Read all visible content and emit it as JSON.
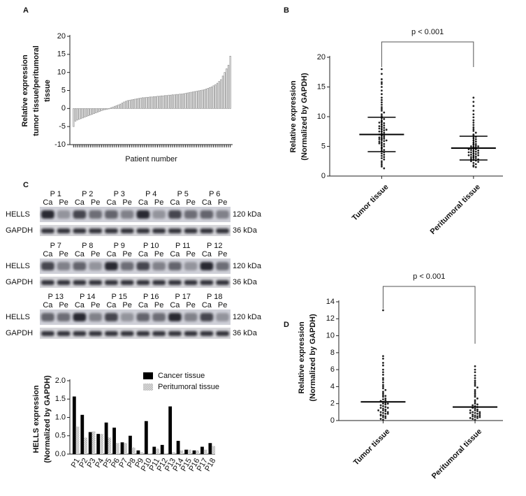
{
  "chart_data": [
    {
      "type": "bar",
      "panel": "A",
      "y_label": [
        "Relative expression",
        "tumor tissue/peritumoral",
        "tissue"
      ],
      "x_label": "Patient number",
      "categories": [
        null,
        null,
        null,
        null,
        null,
        null,
        null,
        null,
        null,
        null,
        null,
        null,
        null,
        null,
        null,
        null,
        null,
        null,
        null,
        null,
        null,
        null,
        null,
        null,
        null,
        null,
        null,
        null,
        null,
        null,
        null,
        null,
        null,
        null,
        null,
        null,
        null,
        null,
        null,
        null,
        null,
        null,
        null,
        null,
        null,
        null,
        null,
        null,
        null,
        null,
        null,
        null,
        null,
        null,
        null,
        null,
        null,
        null,
        null,
        null,
        null,
        null,
        null,
        null,
        null,
        null,
        null,
        null,
        null,
        null,
        null,
        null,
        null,
        null,
        null,
        null,
        null,
        null,
        null,
        null,
        null,
        null,
        null,
        null,
        null
      ],
      "values": [
        -5,
        -3.5,
        -3.2,
        -3,
        -2.8,
        -2.6,
        -2.4,
        -2.2,
        -2,
        -1.8,
        -1.6,
        -1.4,
        -1.2,
        -1,
        -0.8,
        -0.6,
        -0.4,
        -0.3,
        -0.2,
        -0.1,
        0.2,
        0.4,
        0.6,
        0.8,
        1,
        1.2,
        1.5,
        1.8,
        2,
        2.2,
        2.3,
        2.4,
        2.5,
        2.6,
        2.7,
        2.8,
        2.9,
        3,
        3,
        3.1,
        3.1,
        3.2,
        3.2,
        3.3,
        3.3,
        3.4,
        3.4,
        3.5,
        3.5,
        3.6,
        3.6,
        3.7,
        3.7,
        3.8,
        3.8,
        3.9,
        3.9,
        4,
        4,
        4.1,
        4.2,
        4.3,
        4.4,
        4.5,
        4.6,
        4.7,
        4.8,
        4.9,
        5,
        5.1,
        5.2,
        5.4,
        5.6,
        5.8,
        6,
        6.3,
        6.6,
        7,
        7.5,
        8,
        9,
        10,
        11,
        12,
        14.5
      ],
      "color": "#9a9a9a",
      "ylim": [
        -10,
        20
      ],
      "yticks": [
        -10,
        -5,
        0,
        5,
        10,
        15,
        20
      ]
    },
    {
      "type": "dotplot",
      "panel": "B",
      "y_label": [
        "Relative expression",
        "(Normalized by GAPDH)"
      ],
      "annotation": "p < 0.001",
      "categories": [
        "Tumor tissue",
        "Peritumoral tissue"
      ],
      "groups": [
        {
          "values": [
            18,
            17.2,
            16.3,
            15.8,
            15.5,
            15,
            14.4,
            13.8,
            13.2,
            12.8,
            12.4,
            12,
            11.6,
            11.3,
            11,
            10.7,
            10.4,
            10.1,
            9.8,
            9.6,
            9.3,
            9.1,
            8.9,
            8.7,
            8.5,
            8.3,
            8.1,
            7.9,
            7.7,
            7.5,
            7.3,
            7.1,
            6.9,
            6.8,
            6.6,
            6.4,
            6.3,
            6.1,
            5.9,
            5.8,
            5.6,
            5.4,
            5.2,
            5,
            4.8,
            4.6,
            4.4,
            4.2,
            4,
            3.8,
            3.6,
            3.4,
            3.2,
            3,
            2.8,
            2.5,
            2.2,
            1.9,
            1.6,
            1.3,
            8,
            7,
            6,
            9,
            7.5,
            6.5,
            5.5,
            7.8,
            6.2,
            8.4
          ],
          "mean": 7,
          "sd": 2.9
        },
        {
          "values": [
            13.2,
            12.5,
            11.8,
            11,
            10.4,
            9.9,
            9.4,
            9,
            8.6,
            8.2,
            7.9,
            7.6,
            7.3,
            7,
            6.8,
            6.6,
            6.4,
            6.2,
            6,
            5.8,
            5.6,
            5.4,
            5.3,
            5.1,
            5,
            4.9,
            4.8,
            4.7,
            4.6,
            4.5,
            4.4,
            4.3,
            4.2,
            4.1,
            4,
            3.9,
            3.8,
            3.7,
            3.6,
            3.5,
            3.4,
            3.3,
            3.2,
            3.1,
            3,
            2.9,
            2.8,
            2.7,
            2.6,
            2.5,
            2.4,
            2.2,
            2,
            1.8,
            1.6,
            1.5,
            4.5,
            5,
            4,
            3.5
          ],
          "mean": 4.7,
          "sd": 2
        }
      ],
      "color": "#222222",
      "ylim": [
        0,
        20
      ],
      "yticks": [
        0,
        5,
        10,
        15,
        20
      ]
    },
    {
      "type": "grouped-bar",
      "y_label": [
        "HELLS expression",
        "(Normalized by GAPDH)"
      ],
      "categories": [
        "P1",
        "P2",
        "P3",
        "P4",
        "P5",
        "P6",
        "P7",
        "P8",
        "P9",
        "P10",
        "P11",
        "P12",
        "P13",
        "P14",
        "P15",
        "P16",
        "P17",
        "P18"
      ],
      "series": [
        {
          "name": "Cancer tissue",
          "color": "#000000",
          "values": [
            1.57,
            1.07,
            0.6,
            0.55,
            0.86,
            0.72,
            0.32,
            0.5,
            0.1,
            0.9,
            0.2,
            0.25,
            1.3,
            0.36,
            0.12,
            0.1,
            0.2,
            0.3
          ]
        },
        {
          "name": "Peritumoral tissue",
          "color": "#b0b0b0",
          "values": [
            0.75,
            0.45,
            0.62,
            0.55,
            0.45,
            0.3,
            0.3,
            0.18,
            0.05,
            0.02,
            0.15,
            0.02,
            0.05,
            0.1,
            0.12,
            0.1,
            0.12,
            0.22
          ]
        }
      ],
      "ylim": [
        0,
        2
      ],
      "yticks": [
        {
          "value": 0,
          "label": "0.0"
        },
        {
          "value": 0.5,
          "label": "0.5"
        },
        {
          "value": 1,
          "label": "1.0"
        },
        {
          "value": 1.5,
          "label": "1.5"
        },
        {
          "value": 2,
          "label": "2.0"
        }
      ]
    },
    {
      "type": "dotplot",
      "panel": "D",
      "y_label": [
        "Relative expression",
        "(Normalized by GAPDH)"
      ],
      "annotation": "p < 0.001",
      "categories": [
        "Tumor tissue",
        "Peritumoral tissue"
      ],
      "groups": [
        {
          "values": [
            13,
            7.6,
            7.3,
            6.8,
            6.5,
            6,
            5.7,
            5.4,
            5,
            4.8,
            4.5,
            4.2,
            4,
            3.8,
            3.6,
            3.4,
            3.2,
            3,
            2.9,
            2.8,
            2.6,
            2.5,
            2.4,
            2.3,
            2.2,
            2.1,
            2,
            1.9,
            1.8,
            1.7,
            1.6,
            1.5,
            1.4,
            1.3,
            1.2,
            1.1,
            1,
            0.9,
            0.8,
            0.7,
            0.6,
            0.5,
            0.4,
            0.3,
            0.2,
            0.1,
            1.5,
            1,
            0.8,
            2,
            1.2,
            0.6
          ],
          "mean": 2.2
        },
        {
          "values": [
            6.4,
            6,
            5.7,
            5.3,
            5,
            4.7,
            4.5,
            4.3,
            4.1,
            3.9,
            3.6,
            3.4,
            3.2,
            3,
            2.8,
            2.6,
            2.4,
            2.2,
            2,
            1.9,
            1.8,
            1.7,
            1.6,
            1.5,
            1.4,
            1.3,
            1.2,
            1.1,
            1,
            0.9,
            0.8,
            0.7,
            0.6,
            0.5,
            0.4,
            0.3,
            0.2,
            0.1,
            1,
            0.8,
            0.5,
            1.2,
            0.6,
            0.9,
            0.4,
            0.3
          ],
          "mean": 1.6
        }
      ],
      "color": "#222222",
      "ylim": [
        0,
        14
      ],
      "yticks": [
        0,
        2,
        4,
        6,
        8,
        10,
        12,
        14
      ]
    }
  ],
  "blot": {
    "panel": "C",
    "lanes": [
      "Ca",
      "Pe"
    ],
    "rows": [
      {
        "name": "HELLS",
        "size": "120 kDa"
      },
      {
        "name": "GAPDH",
        "size": "36 kDa"
      }
    ],
    "groups": [
      {
        "patients": [
          "P 1",
          "P 2",
          "P 3",
          "P 4",
          "P 5",
          "P 6"
        ]
      },
      {
        "patients": [
          "P 7",
          "P 8",
          "P 9",
          "P 10",
          "P 11",
          "P 12"
        ]
      },
      {
        "patients": [
          "P 13",
          "P 14",
          "P 15",
          "P 16",
          "P 17",
          "P 18"
        ]
      }
    ]
  }
}
